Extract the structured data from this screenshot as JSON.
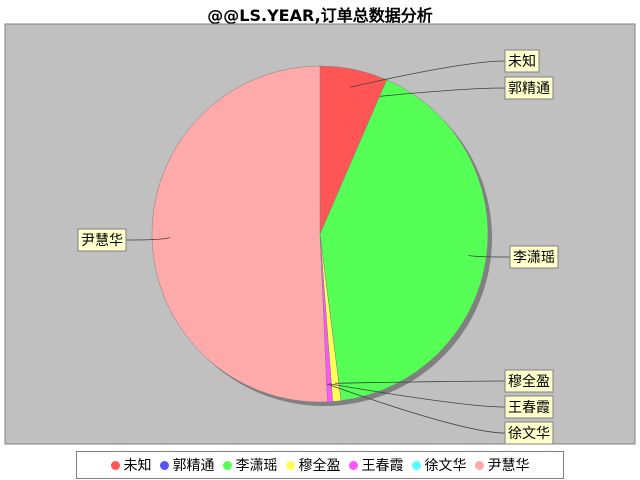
{
  "chart_data": {
    "type": "pie",
    "title": "@@LS.YEAR,订单总数据分析",
    "slices": [
      {
        "name": "未知",
        "value": 6.5,
        "color": "#ff5555"
      },
      {
        "name": "郭精通",
        "value": 0.0,
        "color": "#5555ff"
      },
      {
        "name": "李潇瑶",
        "value": 41.5,
        "color": "#55ff55"
      },
      {
        "name": "穆全盈",
        "value": 0.8,
        "color": "#ffff55"
      },
      {
        "name": "王春霞",
        "value": 0.5,
        "color": "#ff55ff"
      },
      {
        "name": "徐文华",
        "value": 0.0,
        "color": "#55ffff"
      },
      {
        "name": "尹慧华",
        "value": 50.7,
        "color": "#ffaaaa"
      }
    ],
    "legend_position": "bottom",
    "plot_background": "#c0c0c0",
    "label_background": "#ffffcc"
  }
}
